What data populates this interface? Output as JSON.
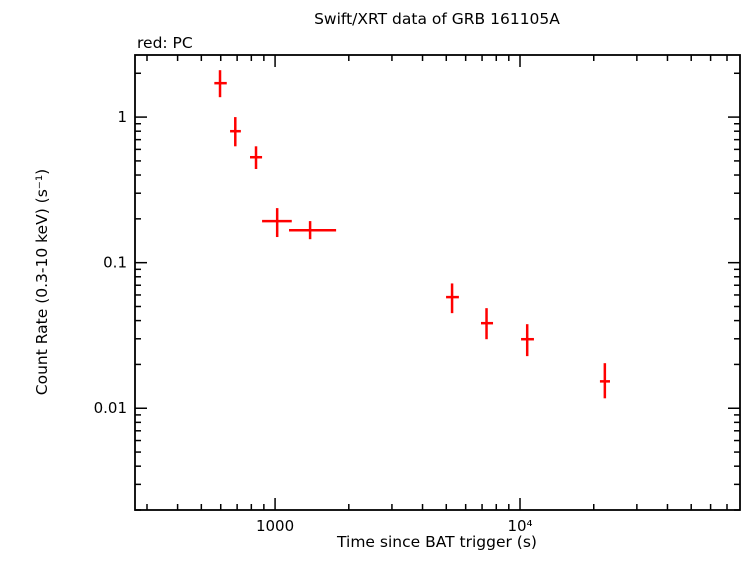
{
  "chart_data": {
    "type": "scatter",
    "title": "Swift/XRT data of GRB 161105A",
    "mode_label": "red: PC",
    "xlabel": "Time since BAT trigger (s)",
    "ylabel": "Count Rate (0.3-10 keV) (s⁻¹)",
    "x_scale": "log",
    "y_scale": "log",
    "xlim": [
      268,
      79100
    ],
    "ylim": [
      0.002,
      2.67
    ],
    "grid": false,
    "legend_position": "top-left",
    "point_color": "#ff0000",
    "x_ticks": [
      {
        "value": 1000,
        "label": "1000"
      },
      {
        "value": 10000,
        "label": "10⁴"
      }
    ],
    "y_ticks": [
      {
        "value": 1,
        "label": "1"
      },
      {
        "value": 0.1,
        "label": "0.1"
      },
      {
        "value": 0.01,
        "label": "0.01"
      }
    ],
    "series": [
      {
        "name": "PC",
        "color": "#ff0000",
        "points": [
          {
            "t": 596,
            "t_lo": 565,
            "t_hi": 635,
            "rate": 1.71,
            "rate_lo": 1.37,
            "rate_hi": 2.1
          },
          {
            "t": 688,
            "t_lo": 655,
            "t_hi": 725,
            "rate": 0.8,
            "rate_lo": 0.63,
            "rate_hi": 1.0
          },
          {
            "t": 836,
            "t_lo": 790,
            "t_hi": 885,
            "rate": 0.53,
            "rate_lo": 0.44,
            "rate_hi": 0.63
          },
          {
            "t": 1020,
            "t_lo": 885,
            "t_hi": 1170,
            "rate": 0.193,
            "rate_lo": 0.15,
            "rate_hi": 0.237
          },
          {
            "t": 1390,
            "t_lo": 1140,
            "t_hi": 1775,
            "rate": 0.167,
            "rate_lo": 0.145,
            "rate_hi": 0.193
          },
          {
            "t": 5280,
            "t_lo": 4990,
            "t_hi": 5630,
            "rate": 0.058,
            "rate_lo": 0.045,
            "rate_hi": 0.072
          },
          {
            "t": 7300,
            "t_lo": 6930,
            "t_hi": 7760,
            "rate": 0.0384,
            "rate_lo": 0.0298,
            "rate_hi": 0.0487
          },
          {
            "t": 10700,
            "t_lo": 10100,
            "t_hi": 11400,
            "rate": 0.0298,
            "rate_lo": 0.0228,
            "rate_hi": 0.0378
          },
          {
            "t": 22200,
            "t_lo": 21200,
            "t_hi": 23300,
            "rate": 0.0153,
            "rate_lo": 0.0117,
            "rate_hi": 0.0204
          }
        ]
      }
    ]
  }
}
